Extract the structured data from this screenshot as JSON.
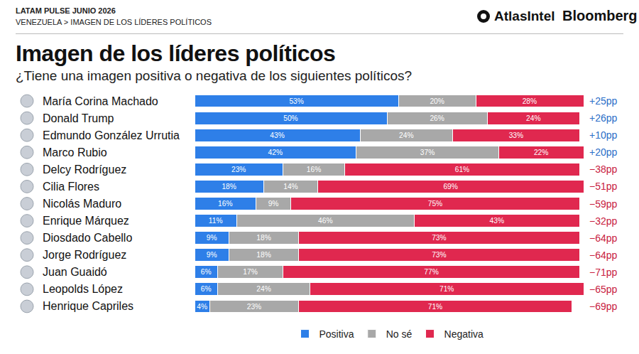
{
  "header": {
    "lines": [
      "LATAM PULSE JUNIO 2026",
      "VENEZUELA > IMAGEN DE LOS LÍDERES POLÍTICOS"
    ],
    "brands": [
      "AtlasIntel",
      "Bloomberg"
    ]
  },
  "chart_data": {
    "type": "bar",
    "orientation": "horizontal",
    "stacked": true,
    "data_labels": true,
    "tick_labels": false,
    "grid": false,
    "legend": "bottom",
    "title": "Imagen de los líderes políticos",
    "subtitle": "¿Tiene una imagen positiva o negativa de los siguientes políticos?",
    "categories": [
      "María Corina Machado",
      "Donald Trump",
      "Edmundo González Urrutia",
      "Marco Rubio",
      "Delcy Rodríguez",
      "Cilia Flores",
      "Nicolás Maduro",
      "Enrique Márquez",
      "Diosdado Cabello",
      "Jorge Rodríguez",
      "Juan Guaidó",
      "Leopolds López",
      "Henrique Capriles"
    ],
    "xlim": [
      0,
      101
    ],
    "series": [
      {
        "name": "Positiva",
        "color": "#2e7fe8",
        "values": [
          53,
          50,
          43,
          42,
          23,
          18,
          16,
          11,
          9,
          9,
          6,
          6,
          4
        ],
        "value_labels": [
          "53%",
          "50%",
          "43%",
          "42%",
          "23%",
          "18%",
          "16%",
          "11%",
          "9%",
          "9%",
          "6%",
          "6%",
          "4%"
        ]
      },
      {
        "name": "No sé",
        "color": "#a8a8a8",
        "values": [
          20,
          26,
          24,
          37,
          16,
          14,
          9,
          46,
          18,
          18,
          17,
          24,
          23
        ],
        "value_labels": [
          "20%",
          "26%",
          "24%",
          "37%",
          "16%",
          "14%",
          "9%",
          "46%",
          "18%",
          "18%",
          "17%",
          "24%",
          "23%"
        ]
      },
      {
        "name": "Negativa",
        "color": "#e0284f",
        "values": [
          28,
          24,
          33,
          22,
          61,
          69,
          75,
          43,
          73,
          73,
          77,
          71,
          71
        ],
        "value_labels": [
          "28%",
          "24%",
          "33%",
          "22%",
          "61%",
          "69%",
          "75%",
          "43%",
          "73%",
          "73%",
          "77%",
          "71%",
          "71%"
        ]
      }
    ],
    "net": {
      "values": [
        25,
        26,
        10,
        20,
        -38,
        -51,
        -59,
        -32,
        -64,
        -64,
        -71,
        -65,
        -69
      ],
      "labels": [
        "+25pp",
        "+26pp",
        "+10pp",
        "+20pp",
        "−38pp",
        "−51pp",
        "−59pp",
        "−32pp",
        "−64pp",
        "−64pp",
        "−71pp",
        "−65pp",
        "−69pp"
      ]
    }
  }
}
